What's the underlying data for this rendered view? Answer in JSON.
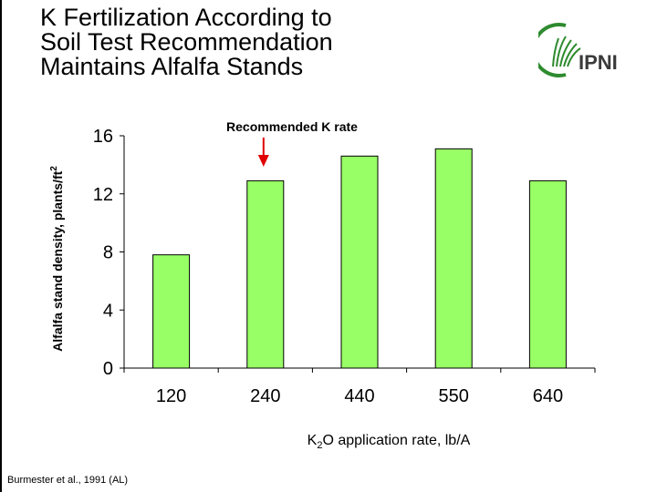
{
  "slide": {
    "title_lines": [
      "K Fertilization According to",
      "Soil Test Recommendation",
      "Maintains Alfalfa Stands"
    ],
    "source": "Burmester et al., 1991 (AL)",
    "logo_text": "IPNI",
    "annotation": "Recommended K rate"
  },
  "colors": {
    "bar_fill": "#99FF66",
    "bar_stroke": "#000000",
    "arrow": "#E00000",
    "logo_green": "#2E8B2E"
  },
  "chart_data": {
    "type": "bar",
    "categories": [
      "120",
      "240",
      "440",
      "550",
      "640"
    ],
    "values": [
      7.8,
      12.9,
      14.6,
      15.1,
      12.9
    ],
    "ylim": [
      0,
      16
    ],
    "yticks": [
      0,
      4,
      8,
      12,
      16
    ],
    "ylabel": "Alfalfa stand density, plants/ft",
    "ylabel_superscript": "2",
    "xlabel_parts": {
      "pre": "K",
      "sub": "2",
      "post": "O application rate, lb/A"
    },
    "annotation_category": "240",
    "grid": false
  }
}
